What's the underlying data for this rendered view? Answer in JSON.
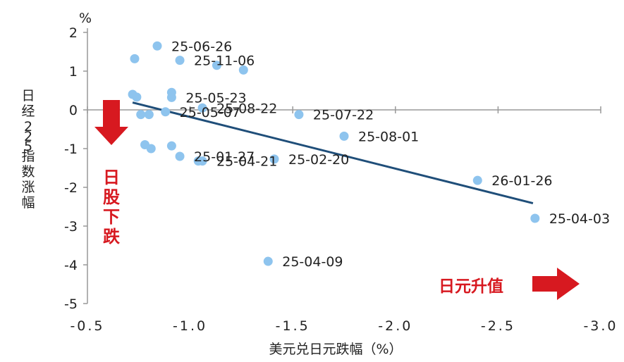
{
  "chart_data": {
    "type": "scatter",
    "title": "",
    "xlabel": "美元兑日元跌幅（%）",
    "ylabel": "日经225指数涨幅",
    "y_unit": "%",
    "xlim": [
      -0.5,
      -3.0
    ],
    "ylim": [
      -5,
      2
    ],
    "x_ticks": [
      "-0.5",
      "-1.0",
      "-1.5",
      "-2.0",
      "-2.5",
      "-3.0"
    ],
    "y_ticks": [
      "2",
      "1",
      "0",
      "-1",
      "-2",
      "-3",
      "-4",
      "-5"
    ],
    "point_color": "#8ec4ee",
    "trendline": {
      "x": [
        -0.72,
        -2.67
      ],
      "y": [
        0.19,
        -2.41
      ],
      "color": "#1f4e79"
    },
    "points": [
      {
        "x": -0.73,
        "y": 1.32,
        "label": ""
      },
      {
        "x": -0.84,
        "y": 1.65,
        "label": "25-06-26"
      },
      {
        "x": -0.95,
        "y": 1.28,
        "label": "25-11-06"
      },
      {
        "x": -1.13,
        "y": 1.15,
        "label": ""
      },
      {
        "x": -1.26,
        "y": 1.03,
        "label": ""
      },
      {
        "x": -0.72,
        "y": 0.4,
        "label": ""
      },
      {
        "x": -0.74,
        "y": 0.33,
        "label": ""
      },
      {
        "x": -0.91,
        "y": 0.45,
        "label": ""
      },
      {
        "x": -0.91,
        "y": 0.32,
        "label": "25-05-23"
      },
      {
        "x": -1.06,
        "y": 0.05,
        "label": "25-08-22"
      },
      {
        "x": -1.53,
        "y": -0.12,
        "label": "25-07-22"
      },
      {
        "x": -0.76,
        "y": -0.12,
        "label": ""
      },
      {
        "x": -0.8,
        "y": -0.12,
        "label": ""
      },
      {
        "x": -0.88,
        "y": -0.05,
        "label": "25-05-07"
      },
      {
        "x": -0.78,
        "y": -0.9,
        "label": ""
      },
      {
        "x": -0.81,
        "y": -1.0,
        "label": ""
      },
      {
        "x": -0.91,
        "y": -0.93,
        "label": ""
      },
      {
        "x": -0.95,
        "y": -1.2,
        "label": "25-01-27"
      },
      {
        "x": -1.04,
        "y": -1.32,
        "label": ""
      },
      {
        "x": -1.06,
        "y": -1.32,
        "label": "25-04-21"
      },
      {
        "x": -1.41,
        "y": -1.27,
        "label": "25-02-20"
      },
      {
        "x": -1.75,
        "y": -0.68,
        "label": "25-08-01"
      },
      {
        "x": -2.4,
        "y": -1.82,
        "label": "26-01-26"
      },
      {
        "x": -2.68,
        "y": -2.8,
        "label": "25-04-03"
      },
      {
        "x": -1.38,
        "y": -3.91,
        "label": "25-04-09"
      }
    ]
  },
  "annotations": {
    "down_label": "日股下跌",
    "up_label": "日元升值",
    "color": "#d71920"
  }
}
